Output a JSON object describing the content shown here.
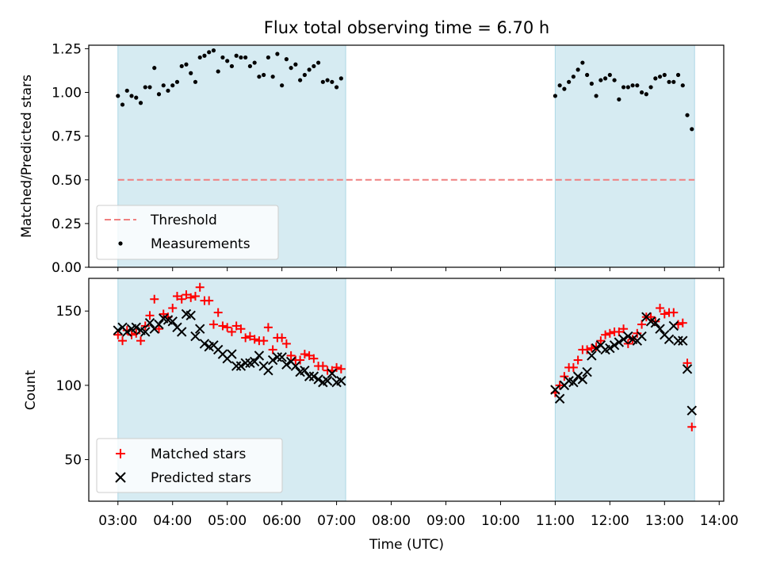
{
  "chart_data": [
    {
      "type": "scatter",
      "title": "Flux total observing time = 6.70 h",
      "xlabel": "",
      "ylabel": "Matched/Predicted stars",
      "xlim": [
        "02:28",
        "14:05"
      ],
      "ylim": [
        0,
        1.27
      ],
      "yticks": [
        0.0,
        0.25,
        0.5,
        0.75,
        1.0,
        1.25
      ],
      "ytick_labels": [
        "0.00",
        "0.25",
        "0.50",
        "0.75",
        "1.00",
        "1.25"
      ],
      "shaded_spans": [
        [
          "03:00",
          "07:10"
        ],
        [
          "11:00",
          "13:33"
        ]
      ],
      "legend_position": "lower-left",
      "series": [
        {
          "name": "Threshold",
          "style": "dashed-line",
          "color": "#f08080",
          "x": [
            "03:00",
            "13:33"
          ],
          "y": [
            0.5,
            0.5
          ]
        },
        {
          "name": "Measurements",
          "style": "dot",
          "color": "#000000",
          "x": [
            "03:00",
            "03:05",
            "03:10",
            "03:15",
            "03:20",
            "03:25",
            "03:30",
            "03:35",
            "03:40",
            "03:45",
            "03:50",
            "03:55",
            "04:00",
            "04:05",
            "04:10",
            "04:15",
            "04:20",
            "04:25",
            "04:30",
            "04:35",
            "04:40",
            "04:45",
            "04:50",
            "04:55",
            "05:00",
            "05:05",
            "05:10",
            "05:15",
            "05:20",
            "05:25",
            "05:30",
            "05:35",
            "05:40",
            "05:45",
            "05:50",
            "05:55",
            "06:00",
            "06:05",
            "06:10",
            "06:15",
            "06:20",
            "06:25",
            "06:30",
            "06:35",
            "06:40",
            "06:45",
            "06:50",
            "06:55",
            "07:00",
            "07:05",
            "11:00",
            "11:05",
            "11:10",
            "11:15",
            "11:20",
            "11:25",
            "11:30",
            "11:35",
            "11:40",
            "11:45",
            "11:50",
            "11:55",
            "12:00",
            "12:05",
            "12:10",
            "12:15",
            "12:20",
            "12:25",
            "12:30",
            "12:35",
            "12:40",
            "12:45",
            "12:50",
            "12:55",
            "13:00",
            "13:05",
            "13:10",
            "13:15",
            "13:20",
            "13:25",
            "13:30"
          ],
          "y": [
            0.98,
            0.93,
            1.01,
            0.98,
            0.97,
            0.94,
            1.03,
            1.03,
            1.14,
            0.99,
            1.04,
            1.01,
            1.04,
            1.06,
            1.15,
            1.16,
            1.11,
            1.06,
            1.2,
            1.21,
            1.23,
            1.24,
            1.12,
            1.2,
            1.18,
            1.15,
            1.21,
            1.2,
            1.2,
            1.15,
            1.17,
            1.09,
            1.1,
            1.2,
            1.09,
            1.22,
            1.04,
            1.19,
            1.14,
            1.16,
            1.07,
            1.1,
            1.13,
            1.15,
            1.17,
            1.06,
            1.07,
            1.06,
            1.03,
            1.08,
            0.98,
            1.04,
            1.02,
            1.06,
            1.09,
            1.13,
            1.17,
            1.1,
            1.05,
            0.98,
            1.07,
            1.08,
            1.1,
            1.07,
            0.96,
            1.03,
            1.03,
            1.04,
            1.04,
            1.0,
            0.99,
            1.03,
            1.08,
            1.09,
            1.1,
            1.06,
            1.06,
            1.1,
            1.04,
            0.87,
            0.79
          ]
        }
      ]
    },
    {
      "type": "scatter",
      "title": "",
      "xlabel": "Time (UTC)",
      "ylabel": "Count",
      "xlim": [
        "02:28",
        "14:05"
      ],
      "ylim": [
        22,
        172
      ],
      "yticks": [
        50,
        100,
        150
      ],
      "ytick_labels": [
        "50",
        "100",
        "150"
      ],
      "xticks": [
        "03:00",
        "04:00",
        "05:00",
        "06:00",
        "07:00",
        "08:00",
        "09:00",
        "10:00",
        "11:00",
        "12:00",
        "13:00",
        "14:00"
      ],
      "shaded_spans": [
        [
          "03:00",
          "07:10"
        ],
        [
          "11:00",
          "13:33"
        ]
      ],
      "legend_position": "lower-left",
      "series": [
        {
          "name": "Matched stars",
          "style": "plus",
          "color": "#ff0000",
          "x": [
            "03:00",
            "03:05",
            "03:10",
            "03:15",
            "03:20",
            "03:25",
            "03:30",
            "03:35",
            "03:40",
            "03:45",
            "03:50",
            "03:55",
            "04:00",
            "04:05",
            "04:10",
            "04:15",
            "04:20",
            "04:25",
            "04:30",
            "04:35",
            "04:40",
            "04:45",
            "04:50",
            "04:55",
            "05:00",
            "05:05",
            "05:10",
            "05:15",
            "05:20",
            "05:25",
            "05:30",
            "05:35",
            "05:40",
            "05:45",
            "05:50",
            "05:55",
            "06:00",
            "06:05",
            "06:10",
            "06:15",
            "06:20",
            "06:25",
            "06:30",
            "06:35",
            "06:40",
            "06:45",
            "06:50",
            "06:55",
            "07:00",
            "07:05",
            "11:00",
            "11:05",
            "11:10",
            "11:15",
            "11:20",
            "11:25",
            "11:30",
            "11:35",
            "11:40",
            "11:45",
            "11:50",
            "11:55",
            "12:00",
            "12:05",
            "12:10",
            "12:15",
            "12:20",
            "12:25",
            "12:30",
            "12:35",
            "12:40",
            "12:45",
            "12:50",
            "12:55",
            "13:00",
            "13:05",
            "13:10",
            "13:15",
            "13:20",
            "13:25",
            "13:30"
          ],
          "y": [
            134,
            130,
            137,
            134,
            135,
            130,
            140,
            147,
            158,
            138,
            148,
            146,
            152,
            160,
            158,
            161,
            159,
            160,
            166,
            157,
            157,
            141,
            149,
            140,
            139,
            136,
            140,
            138,
            132,
            133,
            131,
            130,
            130,
            139,
            124,
            132,
            132,
            128,
            120,
            117,
            117,
            121,
            120,
            118,
            113,
            113,
            110,
            110,
            112,
            111,
            95,
            100,
            106,
            112,
            112,
            117,
            124,
            124,
            125,
            126,
            130,
            134,
            135,
            136,
            136,
            138,
            128,
            131,
            135,
            141,
            146,
            146,
            143,
            152,
            148,
            149,
            149,
            141,
            142,
            115,
            72
          ]
        },
        {
          "name": "Predicted stars",
          "style": "x",
          "color": "#000000",
          "x": [
            "03:00",
            "03:05",
            "03:10",
            "03:15",
            "03:20",
            "03:25",
            "03:30",
            "03:35",
            "03:40",
            "03:45",
            "03:50",
            "03:55",
            "04:00",
            "04:05",
            "04:10",
            "04:15",
            "04:20",
            "04:25",
            "04:30",
            "04:35",
            "04:40",
            "04:45",
            "04:50",
            "04:55",
            "05:00",
            "05:05",
            "05:10",
            "05:15",
            "05:20",
            "05:25",
            "05:30",
            "05:35",
            "05:40",
            "05:45",
            "05:50",
            "05:55",
            "06:00",
            "06:05",
            "06:10",
            "06:15",
            "06:20",
            "06:25",
            "06:30",
            "06:35",
            "06:40",
            "06:45",
            "06:50",
            "06:55",
            "07:00",
            "07:05",
            "11:00",
            "11:05",
            "11:10",
            "11:15",
            "11:20",
            "11:25",
            "11:30",
            "11:35",
            "11:40",
            "11:45",
            "11:50",
            "11:55",
            "12:00",
            "12:05",
            "12:10",
            "12:15",
            "12:20",
            "12:25",
            "12:30",
            "12:35",
            "12:40",
            "12:45",
            "12:50",
            "12:55",
            "13:00",
            "13:05",
            "13:10",
            "13:15",
            "13:20",
            "13:25",
            "13:30"
          ],
          "y": [
            137,
            139,
            136,
            138,
            139,
            137,
            136,
            142,
            138,
            141,
            145,
            144,
            143,
            139,
            136,
            148,
            147,
            133,
            138,
            128,
            126,
            127,
            124,
            121,
            118,
            121,
            113,
            113,
            115,
            115,
            116,
            120,
            113,
            110,
            117,
            119,
            119,
            114,
            116,
            113,
            109,
            110,
            106,
            106,
            104,
            102,
            103,
            108,
            102,
            103,
            97,
            91,
            100,
            103,
            102,
            106,
            104,
            109,
            120,
            125,
            127,
            124,
            125,
            127,
            129,
            131,
            133,
            131,
            130,
            133,
            146,
            143,
            142,
            138,
            134,
            131,
            140,
            130,
            130,
            111,
            83
          ]
        }
      ]
    }
  ]
}
